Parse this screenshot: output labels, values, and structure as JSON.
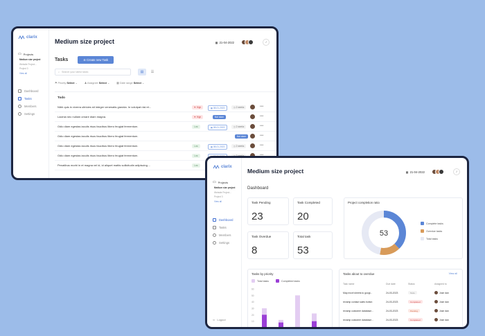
{
  "brand": {
    "name": "clarix"
  },
  "sidebar": {
    "projects_label": "Projects",
    "projects": [
      "Medium size project",
      "Website Project...",
      "Project 3"
    ],
    "view_all": "View all",
    "nav": [
      "Dashboard",
      "Tasks",
      "Members",
      "Settings"
    ],
    "logout": "Logout"
  },
  "project": {
    "title": "Medium size project",
    "date": "21-04-2022"
  },
  "tasks_screen": {
    "heading": "Tasks",
    "create_button": "Create new Task",
    "search_placeholder": "Search your latest tasks",
    "filters": [
      {
        "label": "Priority",
        "value": "Select"
      },
      {
        "label": "Assignee",
        "value": "Select"
      },
      {
        "label": "Date range",
        "value": "Select"
      }
    ],
    "todo_title": "Todo",
    "rows": [
      {
        "text": "Nibh quis in viverra ultricies sit integer venenatis gravida. In volutpat nisi et...",
        "priority": "High",
        "date": "08-01-2023",
        "count": "2 weeks"
      },
      {
        "text": "Lacinia nec nullam ornare diam magna.",
        "priority": "High",
        "date": "",
        "count": "",
        "tag": "Not done"
      },
      {
        "text": "Odio diam egestas iaculis risus faucibus libero feugiat fermentum.",
        "priority": "Low",
        "date": "08-01-2023",
        "count": "2 weeks"
      },
      {
        "text": "Odio diam egestas iaculis risus faucibus libero feugiat fermentum.",
        "priority": "",
        "date": "",
        "count": "",
        "tag": "Not done"
      },
      {
        "text": "Odio diam egestas iaculis risus faucibus libero feugiat fermentum.",
        "priority": "Low",
        "date": "08-01-2023",
        "count": "2 weeks"
      },
      {
        "text": "Odio diam egestas iaculis risus faucibus libero feugiat fermentum.",
        "priority": "Low",
        "date": "08-01-2023",
        "count": "2 weeks"
      },
      {
        "text": "Penatibus morbi in et magna vel id, id aliquet mattis sollicitudin adipiscing....",
        "priority": "Low",
        "date": "08-01-2023",
        "count": "2 weeks"
      }
    ]
  },
  "dashboard": {
    "heading": "Dashboard",
    "cards": [
      {
        "label": "Task Pending",
        "value": "23"
      },
      {
        "label": "Task Completed",
        "value": "20"
      },
      {
        "label": "Task Overdue",
        "value": "8"
      },
      {
        "label": "Total task",
        "value": "53"
      }
    ],
    "completion": {
      "title": "Project completion ratio",
      "center": "53",
      "legend": [
        "Complete tasks",
        "Overdue tasks",
        "Total tasks"
      ]
    },
    "priority_chart": {
      "title": "Tasks by priority",
      "legend": [
        "Total tasks",
        "Completed tasks"
      ]
    },
    "overdue": {
      "title": "Tasks about to overdue",
      "view_all": "View all",
      "columns": [
        "Task name",
        "Due date",
        "Status",
        "Assigned to"
      ],
      "rows": [
        {
          "name": "Map excel sheets to googl...",
          "due": "24-03-2023",
          "status": "Todo",
          "assignee": "Jose dan"
        },
        {
          "name": "revamp contact sales button",
          "due": "24-03-2023",
          "status": "Completed",
          "assignee": "Jose dan"
        },
        {
          "name": "revamp customer database...",
          "due": "24-03-2023",
          "status": "Pending",
          "assignee": "Jose dan"
        },
        {
          "name": "revamp customer database...",
          "due": "24-03-2023",
          "status": "Completed",
          "assignee": "Jose dan"
        }
      ]
    }
  },
  "chart_data": [
    {
      "type": "pie",
      "title": "Project completion ratio",
      "categories": [
        "Complete tasks",
        "Overdue tasks",
        "Total tasks"
      ],
      "values": [
        20,
        8,
        25
      ],
      "colors": [
        "#5b86d6",
        "#d89b5a",
        "#e6e9f4"
      ]
    },
    {
      "type": "bar",
      "title": "Tasks by priority",
      "y_ticks": [
        60,
        50,
        40,
        30,
        20,
        10
      ],
      "series": [
        {
          "name": "Total tasks",
          "values": [
            30,
            12,
            50,
            22
          ]
        },
        {
          "name": "Completed tasks",
          "values": [
            20,
            8,
            0,
            10
          ]
        }
      ],
      "colors": [
        "#e3cdf2",
        "#9b3fd6"
      ]
    }
  ],
  "colors": {
    "accent": "#5b86d6",
    "frame": "#1c2540",
    "background": "#9cbce9"
  }
}
